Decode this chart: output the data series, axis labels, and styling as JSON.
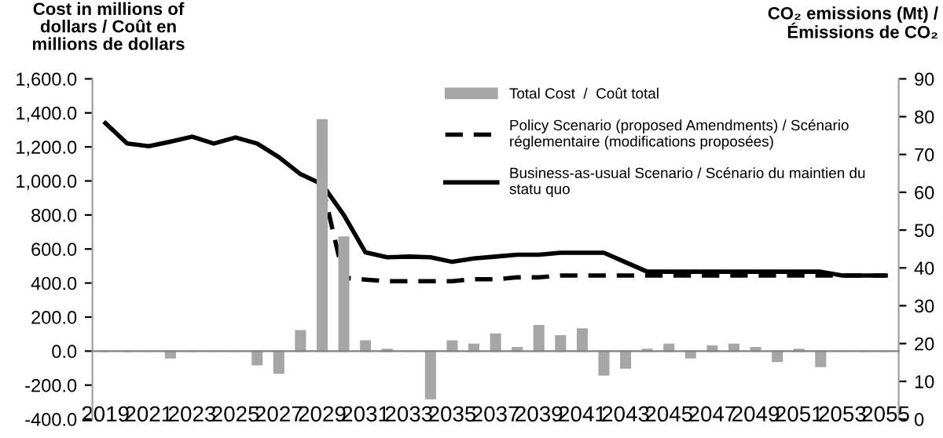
{
  "chart_data": {
    "type": "bar",
    "categories": [
      "2019",
      null,
      "2021",
      null,
      "2023",
      null,
      "2025",
      null,
      "2027",
      null,
      "2029",
      null,
      "2031",
      null,
      "2033",
      null,
      "2035",
      null,
      "2037",
      null,
      "2039",
      null,
      "2041",
      null,
      "2043",
      null,
      "2045",
      null,
      "2047",
      null,
      "2049",
      null,
      "2051",
      null,
      "2053",
      null,
      "2055"
    ],
    "ylabel": "Cost in millions of dollars / Coût en millions de dollars",
    "y2label": "CO₂ emissions (Mt) / Émissions de CO₂",
    "ylim": [
      -400,
      1600
    ],
    "yticks": [
      {
        "value": -400,
        "label": "-400.0"
      },
      {
        "value": -200,
        "label": "-200.0"
      },
      {
        "value": 0,
        "label": "0.0"
      },
      {
        "value": 200,
        "label": "200.0"
      },
      {
        "value": 400,
        "label": "400.0"
      },
      {
        "value": 600,
        "label": "600.0"
      },
      {
        "value": 800,
        "label": "800.0"
      },
      {
        "value": 1000,
        "label": "1,000.0"
      },
      {
        "value": 1200,
        "label": "1,200.0"
      },
      {
        "value": 1400,
        "label": "1,400.0"
      },
      {
        "value": 1600,
        "label": "1,600.0"
      }
    ],
    "y2lim": [
      0,
      90
    ],
    "y2ticks": [
      0,
      10,
      20,
      30,
      40,
      50,
      60,
      70,
      80,
      90
    ],
    "legend": "top right",
    "grid": false,
    "series": [
      {
        "name": "Total Cost  /  Coût total",
        "color": "#a6a6a6",
        "values": [
          0,
          0,
          0,
          -40,
          0,
          0,
          0,
          -80,
          -130,
          120,
          1360,
          670,
          60,
          10,
          0,
          -280,
          60,
          40,
          100,
          20,
          150,
          90,
          130,
          -140,
          -100,
          10,
          40,
          -40,
          30,
          40,
          20,
          -60,
          10,
          -90,
          0,
          0,
          0
        ]
      },
      {
        "name": "Policy Scenario (proposed Amendments) / Scénario réglementaire (modifications proposées)",
        "type": "line",
        "axis": "y2",
        "color": "#000000",
        "line_style": "dashed",
        "values": [
          null,
          null,
          null,
          null,
          null,
          null,
          null,
          null,
          null,
          null,
          62,
          37.4,
          36.9,
          36.5,
          36.5,
          36.5,
          36.5,
          37,
          37,
          37.5,
          37.5,
          38,
          38,
          38,
          38,
          38,
          38,
          38,
          38,
          38,
          38,
          38,
          38,
          38,
          38,
          38,
          38
        ]
      },
      {
        "name": "Business-as-usual Scenario / Scénario du maintien du statu quo",
        "type": "line",
        "axis": "y2",
        "color": "#000000",
        "line_style": "solid",
        "values": [
          78.3,
          72.9,
          72.2,
          73.4,
          74.7,
          72.9,
          74.5,
          72.9,
          69.3,
          64.8,
          62.1,
          54,
          44.1,
          42.8,
          43,
          42.8,
          41.6,
          42.5,
          43,
          43.5,
          43.5,
          44,
          44,
          44,
          41.5,
          39,
          39,
          39,
          39,
          39,
          39,
          39,
          39,
          39,
          38,
          38,
          38
        ]
      }
    ]
  }
}
